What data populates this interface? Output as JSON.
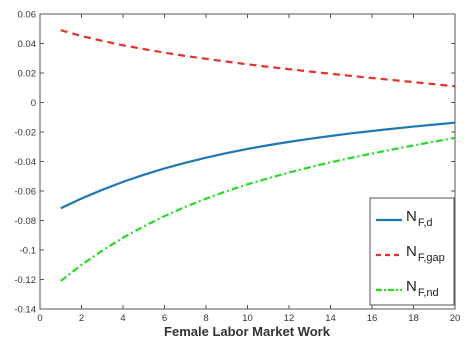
{
  "chart_data": {
    "type": "line",
    "title": "",
    "xlabel": "Female Labor Market Work",
    "ylabel": "",
    "xlim": [
      0,
      20
    ],
    "ylim": [
      -0.14,
      0.06
    ],
    "xticks": [
      0,
      2,
      4,
      6,
      8,
      10,
      12,
      14,
      16,
      18,
      20
    ],
    "yticks": [
      0.06,
      0.04,
      0.02,
      0,
      -0.02,
      -0.04,
      -0.06,
      -0.08,
      -0.1,
      -0.12,
      -0.14
    ],
    "xtick_labels": [
      "0",
      "2",
      "4",
      "6",
      "8",
      "10",
      "12",
      "14",
      "16",
      "18",
      "20"
    ],
    "ytick_labels": [
      "0.06",
      "0.04",
      "0.02",
      "0",
      "-0.02",
      "-0.04",
      "-0.06",
      "-0.08",
      "-0.1",
      "-0.12",
      "-0.14"
    ],
    "grid": false,
    "legend_position": "bottom-right",
    "x": [
      1,
      2,
      3,
      4,
      5,
      6,
      7,
      8,
      9,
      10,
      11,
      12,
      13,
      14,
      15,
      16,
      17,
      18,
      19,
      20
    ],
    "series": [
      {
        "legend_main": "N",
        "legend_sub": "F,d",
        "color": "#1f77b4",
        "style": "solid",
        "values": [
          -0.0717,
          -0.0651,
          -0.0592,
          -0.0538,
          -0.049,
          -0.0447,
          -0.0409,
          -0.0374,
          -0.0343,
          -0.0315,
          -0.029,
          -0.0267,
          -0.0246,
          -0.0227,
          -0.0209,
          -0.0193,
          -0.0178,
          -0.0163,
          -0.015,
          -0.0137
        ]
      },
      {
        "legend_main": "N",
        "legend_sub": "F,gap",
        "color": "#e8302a",
        "style": "dashed",
        "values": [
          0.049,
          0.0451,
          0.0418,
          0.0388,
          0.0362,
          0.0338,
          0.0316,
          0.0296,
          0.0277,
          0.0259,
          0.0242,
          0.0226,
          0.021,
          0.0195,
          0.018,
          0.0166,
          0.0152,
          0.0138,
          0.0124,
          0.011
        ]
      },
      {
        "legend_main": "N",
        "legend_sub": "F,nd",
        "color": "#22dd22",
        "style": "dashdot",
        "values": [
          -0.121,
          -0.1101,
          -0.1004,
          -0.0917,
          -0.084,
          -0.077,
          -0.0708,
          -0.0652,
          -0.0601,
          -0.0555,
          -0.0513,
          -0.0475,
          -0.0439,
          -0.0406,
          -0.0375,
          -0.0346,
          -0.0318,
          -0.0291,
          -0.0265,
          -0.024
        ]
      }
    ]
  }
}
